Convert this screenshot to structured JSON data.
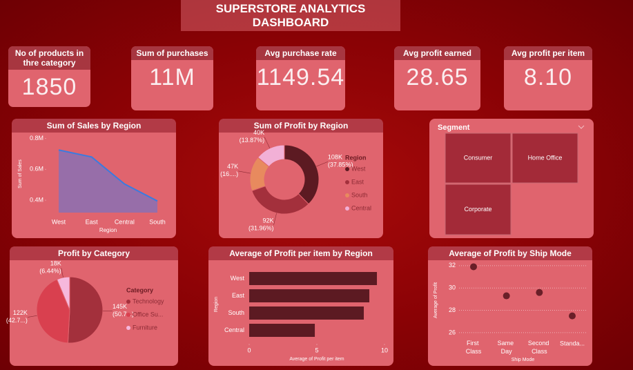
{
  "header": {
    "title": "SUPERSTORE ANALYTICS DASHBOARD"
  },
  "kpis": [
    {
      "label": "No of products in thre category",
      "value": "1850"
    },
    {
      "label": "Sum of purchases",
      "value": "11M"
    },
    {
      "label": "Avg purchase rate",
      "value": "1149.54"
    },
    {
      "label": "Avg profit earned",
      "value": "28.65"
    },
    {
      "label": "Avg profit per item",
      "value": "8.10"
    }
  ],
  "segment": {
    "title": "Segment",
    "items": [
      "Consumer",
      "Home Office",
      "Corporate"
    ]
  },
  "chart_data": [
    {
      "type": "area",
      "title": "Sum of Sales by Region",
      "x_label": "Region",
      "y_label": "Sum of Sales",
      "categories": [
        "West",
        "East",
        "Central",
        "South"
      ],
      "values": [
        725000,
        680000,
        505000,
        395000
      ],
      "color": "#3a7be0",
      "fill_color": "#8a70b4",
      "ylim": [
        320000,
        820000
      ],
      "yticks": [
        {
          "value": 400000,
          "label": "0.4M"
        },
        {
          "value": 600000,
          "label": "0.6M"
        },
        {
          "value": 800000,
          "label": "0.8M"
        }
      ],
      "grid": false
    },
    {
      "type": "donut",
      "title": "Sum of Profit by Region",
      "legend_title": "Region",
      "legend": "right",
      "categories": [
        "West",
        "East",
        "South",
        "Central"
      ],
      "values": [
        108000,
        92000,
        47000,
        40000
      ],
      "value_labels": [
        "108K",
        "92K",
        "47K",
        "40K"
      ],
      "percent_labels": [
        "(37.85%)",
        "(31.96%)",
        "(16....)",
        "(13.87%)"
      ],
      "colors": [
        "#5c1a22",
        "#a3303c",
        "#e88a5e",
        "#f2b0d6"
      ]
    },
    {
      "type": "pie",
      "title": "Profit by Category",
      "legend_title": "Category",
      "legend": "right",
      "categories": [
        "Technology",
        "Office Su...",
        "Furniture"
      ],
      "values": [
        145000,
        122000,
        18000
      ],
      "value_labels": [
        "145K",
        "122K",
        "18K"
      ],
      "percent_labels": [
        "(50.7...)",
        "(42.7...)",
        "(6.44%)"
      ],
      "colors": [
        "#a3303c",
        "#d9404f",
        "#f6b8dc"
      ]
    },
    {
      "type": "hbar",
      "title": "Average of Profit per item by Region",
      "x_label": "Average of Profit per item",
      "y_label": "Region",
      "categories": [
        "West",
        "East",
        "South",
        "Central"
      ],
      "values": [
        9.44,
        8.88,
        8.47,
        4.85
      ],
      "color": "#5c1a22",
      "xlim": [
        0,
        10
      ],
      "xticks": [
        0,
        5,
        10
      ],
      "grid": false
    },
    {
      "type": "scatter",
      "title": "Average of Profit by Ship Mode",
      "x_label": "Ship Mode",
      "y_label": "Average of Profit",
      "categories": [
        "First Class",
        "Same Day",
        "Second Class",
        "Standa..."
      ],
      "values": [
        31.9,
        29.3,
        29.6,
        27.5
      ],
      "color": "#6a1f28",
      "ylim": [
        25.5,
        32.3
      ],
      "yticks": [
        26,
        28,
        30,
        32
      ],
      "grid": true
    }
  ]
}
